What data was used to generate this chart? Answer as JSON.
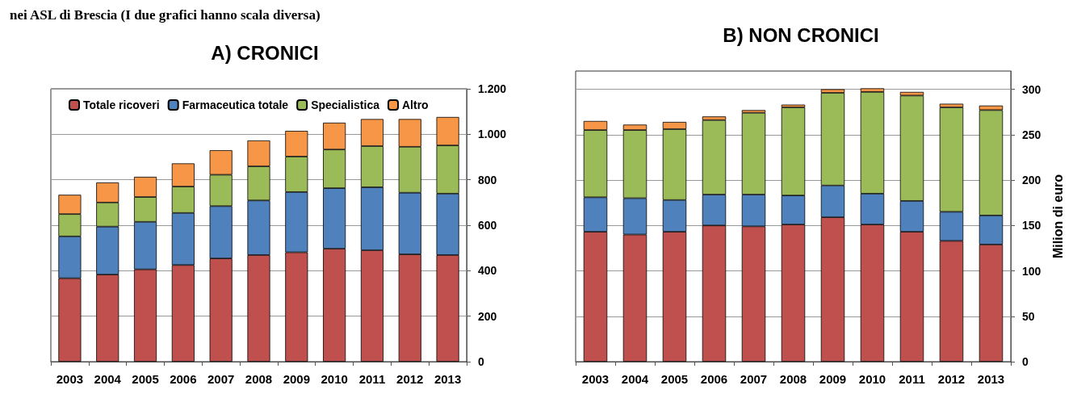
{
  "chart_data": [
    {
      "type": "bar",
      "title": "A) CRONICI",
      "annotations": [
        "nei ASL di Brescia (I due grafici hanno scala diversa)"
      ],
      "categories": [
        "2003",
        "2004",
        "2005",
        "2006",
        "2007",
        "2008",
        "2009",
        "2010",
        "2011",
        "2012",
        "2013"
      ],
      "stacked": true,
      "series": [
        {
          "name": "Totale ricoveri",
          "color": "#c0504d",
          "values": [
            367,
            383,
            406,
            425,
            454,
            469,
            481,
            497,
            490,
            472,
            469
          ]
        },
        {
          "name": "Farmaceutica totale",
          "color": "#4f81bd",
          "values": [
            184,
            211,
            209,
            229,
            230,
            240,
            265,
            266,
            277,
            271,
            270
          ]
        },
        {
          "name": "Specialistica",
          "color": "#9bbb59",
          "values": [
            98,
            106,
            109,
            116,
            138,
            150,
            156,
            170,
            181,
            202,
            212
          ]
        },
        {
          "name": "Altro",
          "color": "#f79646",
          "values": [
            85,
            88,
            89,
            102,
            108,
            114,
            113,
            118,
            119,
            122,
            125
          ]
        }
      ],
      "ylim": [
        0,
        1200
      ],
      "yticks": [
        0,
        200,
        400,
        600,
        800,
        {
          "value": 1000,
          "label": "1.000"
        },
        {
          "value": 1200,
          "label": "1.200"
        }
      ],
      "grid": "y",
      "legend": "top left"
    },
    {
      "type": "bar",
      "title": "B) NON CRONICI",
      "ylabel": "Milion di euro",
      "categories": [
        "2003",
        "2004",
        "2005",
        "2006",
        "2007",
        "2008",
        "2009",
        "2010",
        "2011",
        "2012",
        "2013"
      ],
      "stacked": true,
      "series": [
        {
          "color": "#c0504d",
          "values": [
            143,
            140,
            143,
            150,
            149,
            151,
            159,
            151,
            143,
            133,
            129
          ]
        },
        {
          "color": "#4f81bd",
          "values": [
            38,
            40,
            35,
            34,
            35,
            32,
            35,
            34,
            34,
            32,
            32
          ]
        },
        {
          "color": "#9bbb59",
          "values": [
            74,
            75,
            78,
            82,
            90,
            97,
            102,
            112,
            116,
            115,
            116
          ]
        },
        {
          "color": "#f79646",
          "values": [
            10,
            6,
            8,
            4,
            3,
            3,
            4,
            4,
            4,
            4,
            5
          ]
        }
      ],
      "ylim": [
        0,
        320
      ],
      "yticks": [
        0,
        50,
        100,
        150,
        200,
        250,
        300
      ],
      "grid": "y"
    }
  ]
}
